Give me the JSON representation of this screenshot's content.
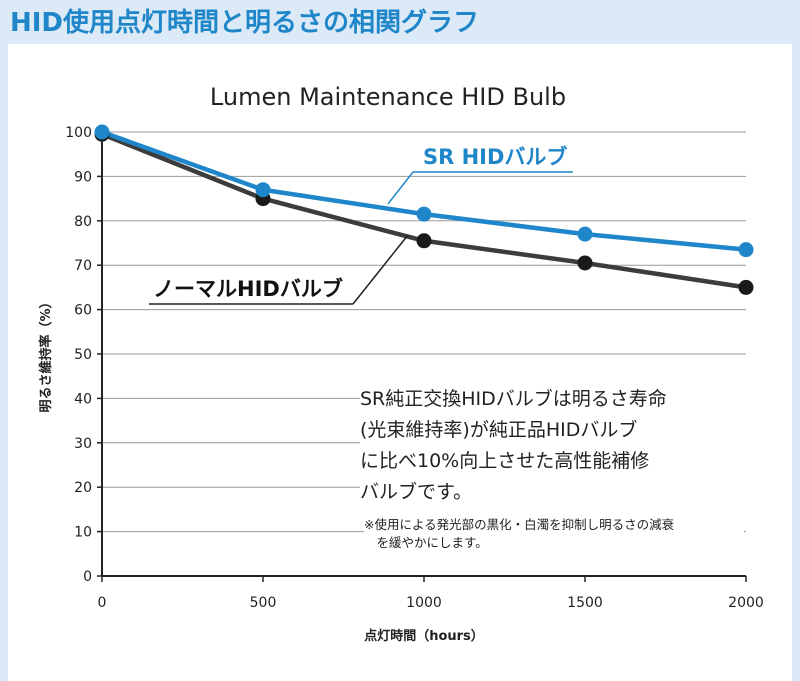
{
  "page_title": "HID使用点灯時間と明るさの相関グラフ",
  "note": {
    "body": "SR純正交換HIDバルブは明るさ寿命\n(光束維持率)が純正品HIDバルブ\nに比べ10%向上させた高性能補修\nバルブです。",
    "footnote": "※使用による発光部の黒化・白濁を抑制し明るさの減衰\n　を緩やかにします。"
  },
  "colors": {
    "background": "#dbeaf6",
    "title": "#1e86c9",
    "sr_series": "#1e86c9",
    "normal_series": "#3c3c3c",
    "normal_marker": "#1a1a1a",
    "grid": "#9a9a9a"
  },
  "chart_data": {
    "type": "line",
    "title": "Lumen Maintenance HID Bulb",
    "xlabel": "点灯時間（hours）",
    "ylabel": "明るさ維持率（%）",
    "xlim": [
      0,
      2000
    ],
    "ylim": [
      0,
      100
    ],
    "x_ticks": [
      0,
      500,
      1000,
      1500,
      2000
    ],
    "y_ticks": [
      0,
      10,
      20,
      30,
      40,
      50,
      60,
      70,
      80,
      90,
      100
    ],
    "grid": "horizontal",
    "x": [
      0,
      500,
      1000,
      1500,
      2000
    ],
    "series": [
      {
        "name": "SR HIDバルブ",
        "values": [
          100,
          87,
          81.5,
          77,
          73.5
        ]
      },
      {
        "name": "ノーマルHIDバルブ",
        "values": [
          99.5,
          85,
          75.5,
          70.5,
          65
        ]
      }
    ]
  }
}
